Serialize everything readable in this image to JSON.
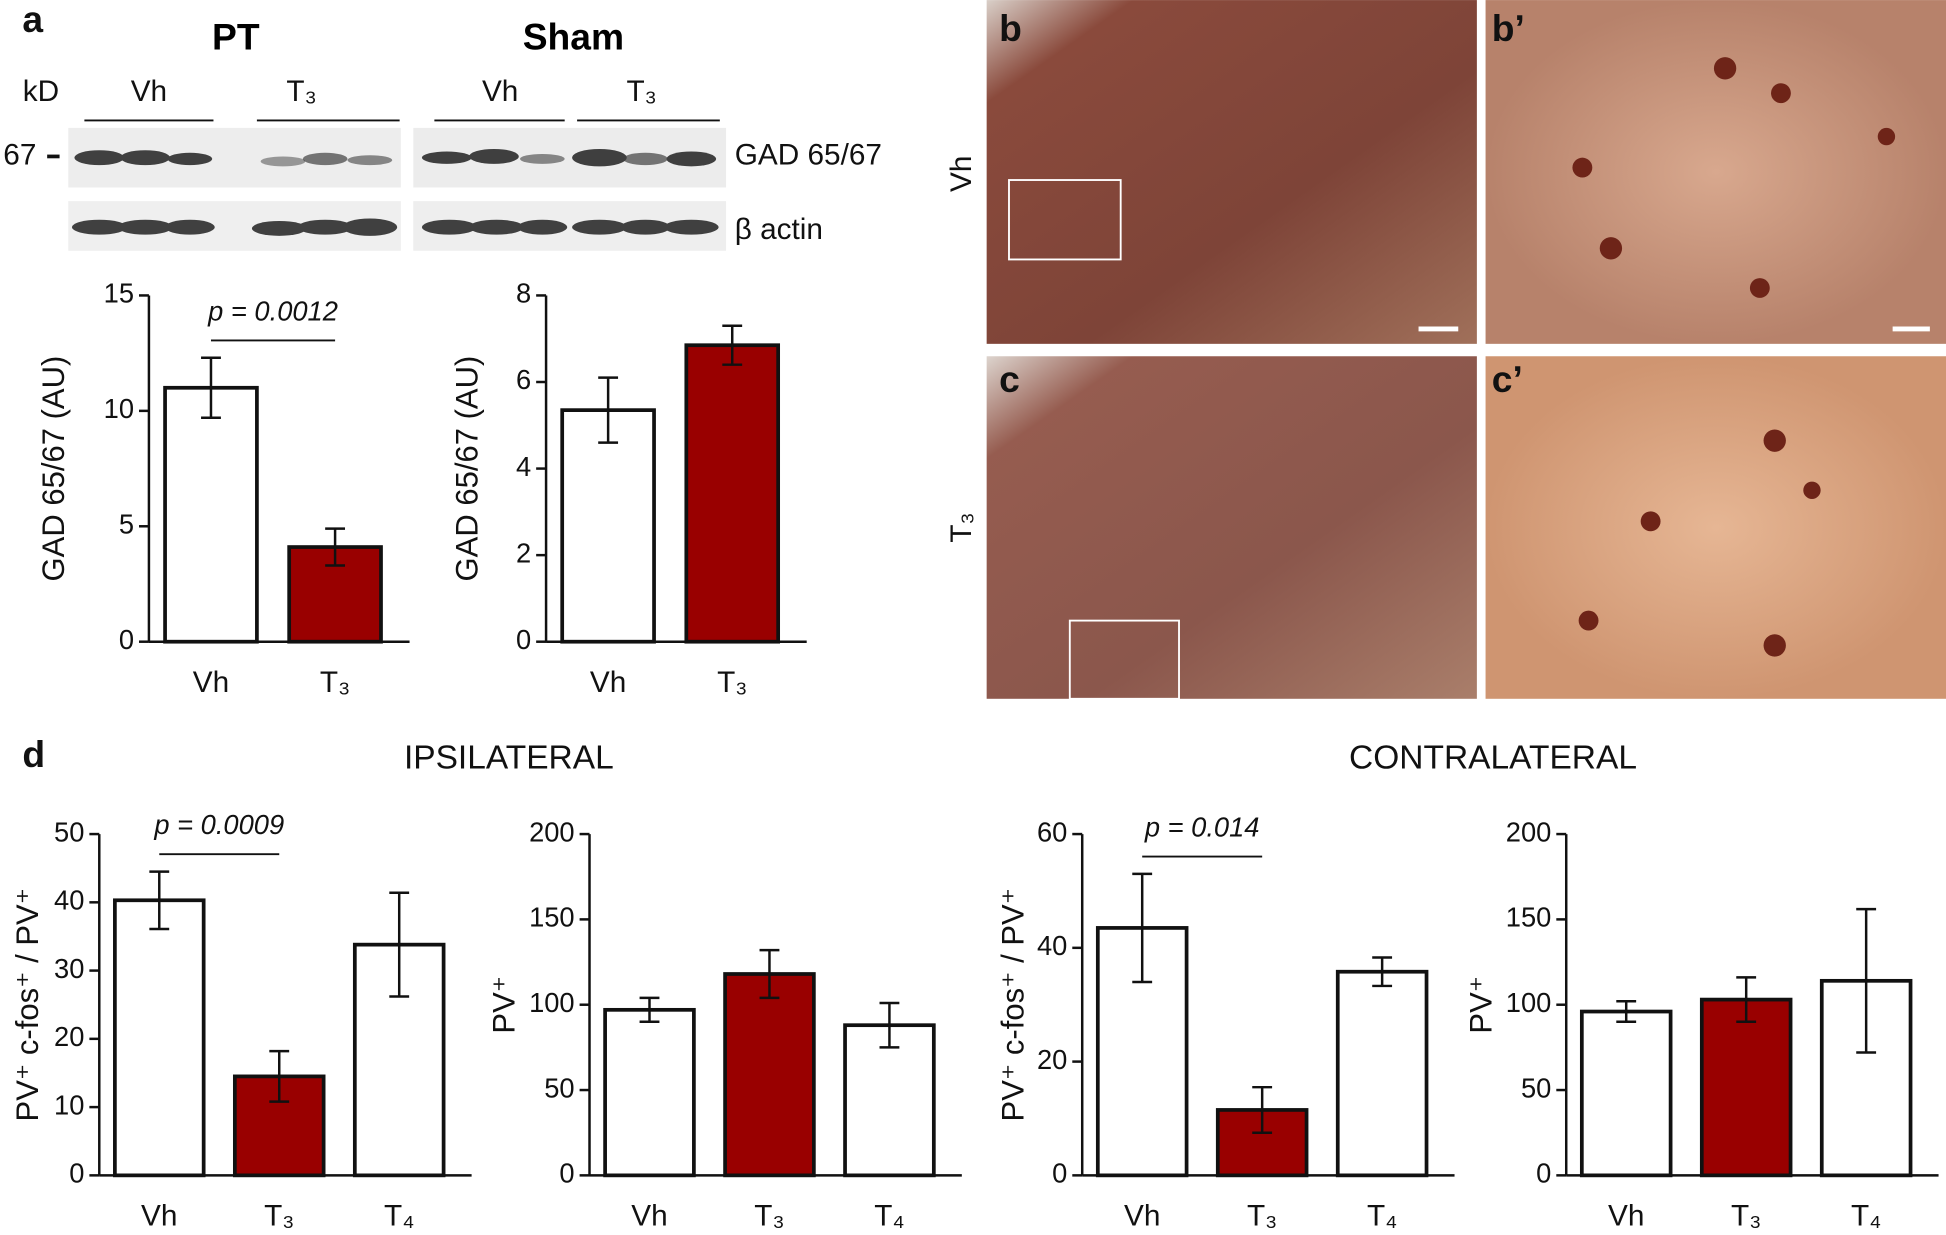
{
  "labels": {
    "a": "a",
    "pt": "PT",
    "sham": "Sham",
    "kd": "kD",
    "lanes": [
      "Vh",
      "T₃",
      "Vh",
      "T₃"
    ],
    "marker": "67",
    "blots": [
      "GAD 65/67",
      "β actin"
    ],
    "b": "b",
    "b_prime": "b’",
    "c": "c",
    "c_prime": "c’",
    "row_labels": [
      "Vh",
      "T₃"
    ],
    "d": "d",
    "ipsi": "IPSILATERAL",
    "contra": "CONTRALATERAL"
  },
  "chart_data": [
    {
      "type": "bar",
      "y_label": "GAD 65/67 (AU)",
      "annotation": "p = 0.0012",
      "categories": [
        "Vh",
        "T₃"
      ],
      "values": [
        11.0,
        4.1
      ],
      "errors": [
        1.3,
        0.8
      ],
      "colors": [
        "#ffffff",
        "#990000"
      ],
      "ylim": [
        0,
        15
      ],
      "yticks": [
        0,
        5,
        10,
        15
      ]
    },
    {
      "type": "bar",
      "y_label": "GAD 65/67 (AU)",
      "categories": [
        "Vh",
        "T₃"
      ],
      "values": [
        5.35,
        6.85
      ],
      "errors": [
        0.75,
        0.45
      ],
      "colors": [
        "#ffffff",
        "#990000"
      ],
      "ylim": [
        0,
        8
      ],
      "yticks": [
        0,
        2,
        4,
        6,
        8
      ]
    },
    {
      "type": "bar",
      "y_label": "PV⁺ c-fos⁺ / PV⁺",
      "annotation": "p = 0.0009",
      "categories": [
        "Vh",
        "T₃",
        "T₄"
      ],
      "values": [
        40.3,
        14.5,
        33.8
      ],
      "errors": [
        4.2,
        3.7,
        7.6
      ],
      "colors": [
        "#ffffff",
        "#990000",
        "#ffffff"
      ],
      "ylim": [
        0,
        50
      ],
      "yticks": [
        0,
        10,
        20,
        30,
        40,
        50
      ]
    },
    {
      "type": "bar",
      "y_label": "PV⁺",
      "categories": [
        "Vh",
        "T₃",
        "T₄"
      ],
      "values": [
        97,
        118,
        88
      ],
      "errors": [
        7,
        14,
        13
      ],
      "colors": [
        "#ffffff",
        "#990000",
        "#ffffff"
      ],
      "ylim": [
        0,
        200
      ],
      "yticks": [
        0,
        50,
        100,
        150,
        200
      ]
    },
    {
      "type": "bar",
      "y_label": "PV⁺ c-fos⁺ / PV⁺",
      "annotation": "p = 0.014",
      "categories": [
        "Vh",
        "T₃",
        "T₄"
      ],
      "values": [
        43.5,
        11.5,
        35.8
      ],
      "errors": [
        9.5,
        4,
        2.5
      ],
      "colors": [
        "#ffffff",
        "#990000",
        "#ffffff"
      ],
      "ylim": [
        0,
        60
      ],
      "yticks": [
        0,
        20,
        40,
        60
      ]
    },
    {
      "type": "bar",
      "y_label": "PV⁺",
      "categories": [
        "Vh",
        "T₃",
        "T₄"
      ],
      "values": [
        96,
        103,
        114
      ],
      "errors": [
        6,
        13,
        42
      ],
      "colors": [
        "#ffffff",
        "#990000",
        "#ffffff"
      ],
      "ylim": [
        0,
        200
      ],
      "yticks": [
        0,
        50,
        100,
        150,
        200
      ]
    }
  ]
}
